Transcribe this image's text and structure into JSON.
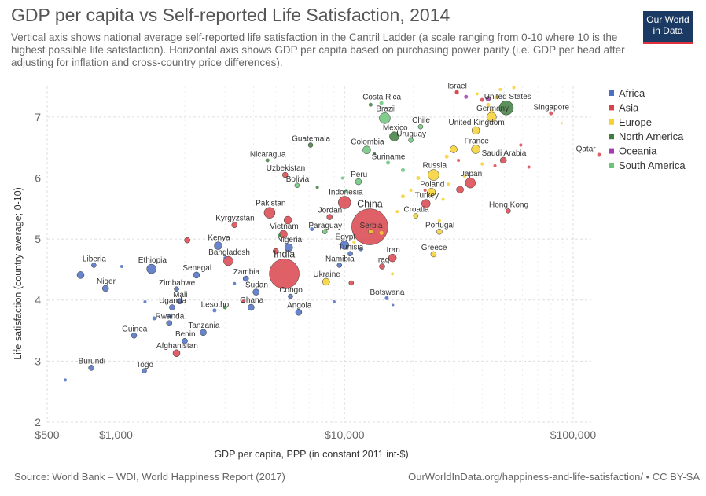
{
  "header": {
    "title": "GDP per capita vs Self-reported Life Satisfaction, 2014",
    "subtitle": "Vertical axis shows national average self-reported life satisfaction in the Cantril Ladder (a scale ranging from 0-10 where 10 is the highest possible life satisfaction). Horizontal axis shows GDP per capita based on purchasing power parity (i.e. GDP per head after adjusting for inflation and cross-country price differences).",
    "logo_line1": "Our World",
    "logo_line2": "in Data"
  },
  "footer": {
    "source": "Source: World Bank – WDI, World Happiness Report (2017)",
    "url": "OurWorldInData.org/happiness-and-life-satisfaction/ • CC BY-SA"
  },
  "chart_data": {
    "type": "scatter",
    "title": "GDP per capita vs Self-reported Life Satisfaction, 2014",
    "xlabel": "GDP per capita, PPP (in constant 2011 int-$)",
    "ylabel": "Life satisfaction (country average; 0-10)",
    "x_scale": "log",
    "xlim": [
      500,
      120000
    ],
    "ylim": [
      2,
      7.5
    ],
    "x_ticks": [
      {
        "value": 500,
        "label": "$500"
      },
      {
        "value": 1000,
        "label": "$1,000"
      },
      {
        "value": 10000,
        "label": "$10,000"
      },
      {
        "value": 100000,
        "label": "$100,000"
      }
    ],
    "y_ticks": [
      2,
      3,
      4,
      5,
      6,
      7
    ],
    "grid": true,
    "legend_position": "right",
    "colors": {
      "Africa": "#4c6fc4",
      "Asia": "#d9444c",
      "Europe": "#f7d133",
      "North America": "#3f7d3f",
      "Oceania": "#a63cb0",
      "South America": "#6bc47a"
    },
    "series": [
      {
        "name": "Africa",
        "points": [
          {
            "label": "Liberia",
            "x": 800,
            "y": 4.57,
            "size": 3
          },
          {
            "label": "Ethiopia",
            "x": 1430,
            "y": 4.51,
            "size": 6
          },
          {
            "label": "Niger",
            "x": 900,
            "y": 4.19,
            "size": 4
          },
          {
            "label": "Senegal",
            "x": 2250,
            "y": 4.41,
            "size": 4
          },
          {
            "label": "Zimbabwe",
            "x": 1840,
            "y": 4.18,
            "size": 3
          },
          {
            "label": "Kenya",
            "x": 2800,
            "y": 4.89,
            "size": 5
          },
          {
            "label": "Mali",
            "x": 1900,
            "y": 3.98,
            "size": 3.5
          },
          {
            "label": "Uganda",
            "x": 1760,
            "y": 3.88,
            "size": 3.5
          },
          {
            "label": "Rwanda",
            "x": 1710,
            "y": 3.62,
            "size": 3.5
          },
          {
            "label": "Guinea",
            "x": 1200,
            "y": 3.42,
            "size": 3.5
          },
          {
            "label": "Benin",
            "x": 2000,
            "y": 3.33,
            "size": 3.5
          },
          {
            "label": "Tanzania",
            "x": 2410,
            "y": 3.47,
            "size": 4
          },
          {
            "label": "Burundi",
            "x": 780,
            "y": 2.89,
            "size": 3.5
          },
          {
            "label": "Togo",
            "x": 1330,
            "y": 2.84,
            "size": 3
          },
          {
            "label": "Lesotho",
            "x": 2700,
            "y": 3.83,
            "size": 2.5
          },
          {
            "label": "Ghana",
            "x": 3900,
            "y": 3.88,
            "size": 4
          },
          {
            "label": "Zambia",
            "x": 3700,
            "y": 4.35,
            "size": 3.5
          },
          {
            "label": "Sudan",
            "x": 4100,
            "y": 4.13,
            "size": 4
          },
          {
            "label": "Congo",
            "x": 5800,
            "y": 4.06,
            "size": 3
          },
          {
            "label": "Angola",
            "x": 6300,
            "y": 3.8,
            "size": 4
          },
          {
            "label": "Nigeria",
            "x": 5700,
            "y": 4.86,
            "size": 5
          },
          {
            "label": "Egypt",
            "x": 10000,
            "y": 4.9,
            "size": 5.5
          },
          {
            "label": "Tunisia",
            "x": 10600,
            "y": 4.76,
            "size": 3
          },
          {
            "label": "Namibia",
            "x": 9500,
            "y": 4.57,
            "size": 3
          },
          {
            "label": "Botswana",
            "x": 15300,
            "y": 4.03,
            "size": 2.5
          },
          {
            "label": "",
            "x": 700,
            "y": 4.41,
            "size": 4.5
          },
          {
            "label": "",
            "x": 600,
            "y": 2.69,
            "size": 2
          },
          {
            "label": "",
            "x": 1060,
            "y": 4.55,
            "size": 2
          },
          {
            "label": "",
            "x": 1340,
            "y": 3.97,
            "size": 2
          },
          {
            "label": "",
            "x": 1470,
            "y": 3.7,
            "size": 2.5
          },
          {
            "label": "",
            "x": 1720,
            "y": 3.73,
            "size": 2.5
          },
          {
            "label": "",
            "x": 3300,
            "y": 4.27,
            "size": 2
          },
          {
            "label": "",
            "x": 7200,
            "y": 5.16,
            "size": 2.5
          },
          {
            "label": "",
            "x": 11800,
            "y": 4.83,
            "size": 2.5
          },
          {
            "label": "",
            "x": 9000,
            "y": 3.97,
            "size": 2
          },
          {
            "label": "",
            "x": 16300,
            "y": 3.92,
            "size": 1.5
          },
          {
            "label": "",
            "x": 3000,
            "y": 4.69,
            "size": 2
          }
        ]
      },
      {
        "name": "Asia",
        "points": [
          {
            "label": "India",
            "x": 5450,
            "y": 4.43,
            "size": 19
          },
          {
            "label": "China",
            "x": 12900,
            "y": 5.2,
            "size": 23
          },
          {
            "label": "Pakistan",
            "x": 4700,
            "y": 5.43,
            "size": 7
          },
          {
            "label": "Bangladesh",
            "x": 3100,
            "y": 4.64,
            "size": 6
          },
          {
            "label": "Kyrgyzstan",
            "x": 3300,
            "y": 5.23,
            "size": 3.5
          },
          {
            "label": "Vietnam",
            "x": 5400,
            "y": 5.08,
            "size": 5
          },
          {
            "label": "Indonesia",
            "x": 10000,
            "y": 5.6,
            "size": 8
          },
          {
            "label": "Jordan",
            "x": 8600,
            "y": 5.36,
            "size": 3.5
          },
          {
            "label": "Iraq",
            "x": 14600,
            "y": 4.55,
            "size": 3.5
          },
          {
            "label": "Iran",
            "x": 16200,
            "y": 4.69,
            "size": 5
          },
          {
            "label": "Afghanistan",
            "x": 1840,
            "y": 3.13,
            "size": 4.5
          },
          {
            "label": "Uzbekistan",
            "x": 5500,
            "y": 6.05,
            "size": 3.5
          },
          {
            "label": "Turkey",
            "x": 22700,
            "y": 5.58,
            "size": 5.5
          },
          {
            "label": "Japan",
            "x": 35500,
            "y": 5.92,
            "size": 6.5
          },
          {
            "label": "Saudi Arabia",
            "x": 49500,
            "y": 6.29,
            "size": 4
          },
          {
            "label": "Hong Kong",
            "x": 52000,
            "y": 5.46,
            "size": 3
          },
          {
            "label": "Singapore",
            "x": 80000,
            "y": 7.06,
            "size": 2.5
          },
          {
            "label": "Qatar",
            "x": 130000,
            "y": 6.38,
            "size": 2.5
          },
          {
            "label": "Israel",
            "x": 31000,
            "y": 7.41,
            "size": 2.5
          },
          {
            "label": "",
            "x": 2050,
            "y": 4.98,
            "size": 3.5
          },
          {
            "label": "",
            "x": 5650,
            "y": 5.31,
            "size": 5
          },
          {
            "label": "",
            "x": 5000,
            "y": 4.8,
            "size": 3.5
          },
          {
            "label": "",
            "x": 10700,
            "y": 4.28,
            "size": 3
          },
          {
            "label": "",
            "x": 32000,
            "y": 5.81,
            "size": 4.5
          },
          {
            "label": "",
            "x": 59000,
            "y": 6.54,
            "size": 2
          },
          {
            "label": "",
            "x": 64000,
            "y": 6.18,
            "size": 2
          },
          {
            "label": "",
            "x": 45500,
            "y": 6.2,
            "size": 2
          },
          {
            "label": "",
            "x": 3600,
            "y": 3.98,
            "size": 2
          },
          {
            "label": "",
            "x": 31000,
            "y": 7.4,
            "size": 2.5
          },
          {
            "label": "",
            "x": 40000,
            "y": 7.28,
            "size": 2.5
          },
          {
            "label": "",
            "x": 22500,
            "y": 5.8,
            "size": 2
          },
          {
            "label": "",
            "x": 31500,
            "y": 6.29,
            "size": 2
          }
        ]
      },
      {
        "name": "Europe",
        "points": [
          {
            "label": "Germany",
            "x": 44000,
            "y": 7.0,
            "size": 6
          },
          {
            "label": "United Kingdom",
            "x": 37500,
            "y": 6.78,
            "size": 5
          },
          {
            "label": "France",
            "x": 37500,
            "y": 6.47,
            "size": 5.5
          },
          {
            "label": "Russia",
            "x": 24500,
            "y": 6.05,
            "size": 7
          },
          {
            "label": "Poland",
            "x": 24000,
            "y": 5.77,
            "size": 5
          },
          {
            "label": "Croatia",
            "x": 20500,
            "y": 5.38,
            "size": 3
          },
          {
            "label": "Portugal",
            "x": 26000,
            "y": 5.12,
            "size": 3.5
          },
          {
            "label": "Greece",
            "x": 24500,
            "y": 4.75,
            "size": 3.5
          },
          {
            "label": "Ukraine",
            "x": 8300,
            "y": 4.3,
            "size": 4.5
          },
          {
            "label": "Serbia",
            "x": 13000,
            "y": 5.12,
            "size": 3
          },
          {
            "label": "",
            "x": 30000,
            "y": 6.47,
            "size": 4.5
          },
          {
            "label": "",
            "x": 33500,
            "y": 6.03,
            "size": 2
          },
          {
            "label": "",
            "x": 40000,
            "y": 6.23,
            "size": 2
          },
          {
            "label": "",
            "x": 44000,
            "y": 7.1,
            "size": 2.5
          },
          {
            "label": "",
            "x": 46000,
            "y": 7.32,
            "size": 2.5
          },
          {
            "label": "",
            "x": 42500,
            "y": 7.2,
            "size": 2.5
          },
          {
            "label": "",
            "x": 48000,
            "y": 7.45,
            "size": 2
          },
          {
            "label": "",
            "x": 55000,
            "y": 7.48,
            "size": 2
          },
          {
            "label": "",
            "x": 38000,
            "y": 7.38,
            "size": 2
          },
          {
            "label": "",
            "x": 28000,
            "y": 6.35,
            "size": 2.5
          },
          {
            "label": "",
            "x": 26000,
            "y": 5.3,
            "size": 2
          },
          {
            "label": "",
            "x": 19500,
            "y": 5.8,
            "size": 2
          },
          {
            "label": "",
            "x": 18000,
            "y": 5.7,
            "size": 2.5
          },
          {
            "label": "",
            "x": 21000,
            "y": 6.0,
            "size": 2.5
          },
          {
            "label": "",
            "x": 28500,
            "y": 5.9,
            "size": 2
          },
          {
            "label": "",
            "x": 27000,
            "y": 5.65,
            "size": 2
          },
          {
            "label": "",
            "x": 16200,
            "y": 4.43,
            "size": 2
          },
          {
            "label": "",
            "x": 11000,
            "y": 4.95,
            "size": 2
          },
          {
            "label": "",
            "x": 17000,
            "y": 5.45,
            "size": 2
          },
          {
            "label": "",
            "x": 14500,
            "y": 5.1,
            "size": 2.5
          },
          {
            "label": "",
            "x": 89000,
            "y": 6.9,
            "size": 1.5
          }
        ]
      },
      {
        "name": "North America",
        "points": [
          {
            "label": "United States",
            "x": 51000,
            "y": 7.15,
            "size": 9
          },
          {
            "label": "Mexico",
            "x": 16500,
            "y": 6.68,
            "size": 6
          },
          {
            "label": "Guatemala",
            "x": 7100,
            "y": 6.54,
            "size": 3
          },
          {
            "label": "Nicaragua",
            "x": 4600,
            "y": 6.29,
            "size": 2.5
          },
          {
            "label": "",
            "x": 3000,
            "y": 3.88,
            "size": 2.5
          },
          {
            "label": "",
            "x": 7600,
            "y": 5.85,
            "size": 2
          },
          {
            "label": "",
            "x": 5200,
            "y": 5.06,
            "size": 2
          },
          {
            "label": "",
            "x": 13000,
            "y": 7.2,
            "size": 2.5
          },
          {
            "label": "",
            "x": 13500,
            "y": 6.4,
            "size": 2
          }
        ]
      },
      {
        "name": "Oceania",
        "points": [
          {
            "label": "",
            "x": 42500,
            "y": 7.3,
            "size": 3
          },
          {
            "label": "",
            "x": 34000,
            "y": 7.33,
            "size": 2.5
          }
        ]
      },
      {
        "name": "South America",
        "points": [
          {
            "label": "Brazil",
            "x": 15000,
            "y": 6.98,
            "size": 7
          },
          {
            "label": "Costa Rica",
            "x": 14500,
            "y": 7.23,
            "size": 2.5
          },
          {
            "label": "Chile",
            "x": 21500,
            "y": 6.84,
            "size": 3
          },
          {
            "label": "Uruguay",
            "x": 19500,
            "y": 6.62,
            "size": 3
          },
          {
            "label": "Colombia",
            "x": 12500,
            "y": 6.46,
            "size": 5
          },
          {
            "label": "Suriname",
            "x": 15500,
            "y": 6.25,
            "size": 2.5
          },
          {
            "label": "Peru",
            "x": 11500,
            "y": 5.94,
            "size": 4
          },
          {
            "label": "Bolivia",
            "x": 6200,
            "y": 5.88,
            "size": 3
          },
          {
            "label": "Paraguay",
            "x": 8200,
            "y": 5.12,
            "size": 3
          },
          {
            "label": "",
            "x": 18000,
            "y": 6.13,
            "size": 2.5
          },
          {
            "label": "",
            "x": 10200,
            "y": 5.79,
            "size": 2
          },
          {
            "label": "",
            "x": 9800,
            "y": 6.0,
            "size": 2
          }
        ]
      }
    ]
  }
}
